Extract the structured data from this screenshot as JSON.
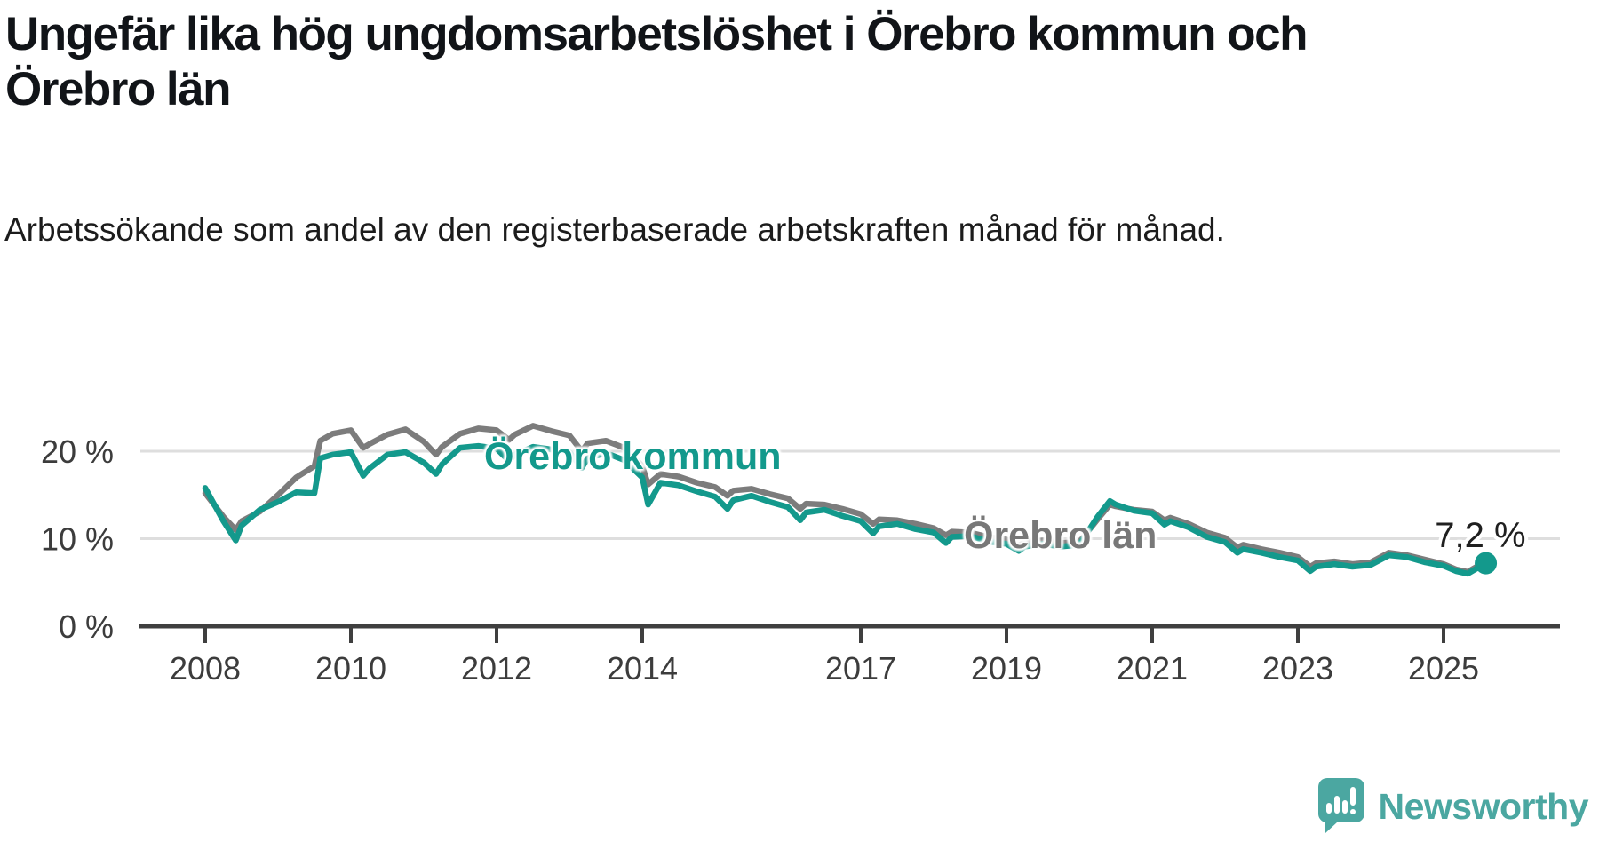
{
  "header": {
    "title": "Ungefär lika hög ungdomsarbetslöshet i Örebro kommun och Örebro län",
    "subtitle": "Arbetssökande som andel av den registerbaserade arbetskraften månad för månad."
  },
  "chart_data": {
    "type": "line",
    "xlabel": "",
    "ylabel": "",
    "x_range": [
      2008.0,
      2025.58
    ],
    "y_range": [
      0,
      24
    ],
    "grid": true,
    "x_ticks": [
      {
        "value": 2008,
        "label": "2008"
      },
      {
        "value": 2010,
        "label": "2010"
      },
      {
        "value": 2012,
        "label": "2012"
      },
      {
        "value": 2014,
        "label": "2014"
      },
      {
        "value": 2017,
        "label": "2017"
      },
      {
        "value": 2019,
        "label": "2019"
      },
      {
        "value": 2021,
        "label": "2021"
      },
      {
        "value": 2023,
        "label": "2023"
      },
      {
        "value": 2025,
        "label": "2025"
      }
    ],
    "y_ticks": [
      {
        "value": 0,
        "label": "0 %",
        "grid": false
      },
      {
        "value": 10,
        "label": "10 %",
        "grid": true
      },
      {
        "value": 20,
        "label": "20 %",
        "grid": true
      }
    ],
    "x": [
      2008.0,
      2008.25,
      2008.42,
      2008.5,
      2008.75,
      2009.0,
      2009.25,
      2009.5,
      2009.58,
      2009.75,
      2010.0,
      2010.17,
      2010.25,
      2010.5,
      2010.75,
      2011.0,
      2011.17,
      2011.25,
      2011.5,
      2011.75,
      2012.0,
      2012.17,
      2012.25,
      2012.5,
      2012.75,
      2013.0,
      2013.17,
      2013.25,
      2013.5,
      2013.75,
      2014.0,
      2014.08,
      2014.25,
      2014.5,
      2014.75,
      2015.0,
      2015.17,
      2015.25,
      2015.5,
      2015.75,
      2016.0,
      2016.17,
      2016.25,
      2016.5,
      2016.75,
      2017.0,
      2017.17,
      2017.25,
      2017.5,
      2017.75,
      2018.0,
      2018.17,
      2018.25,
      2018.5,
      2018.75,
      2019.0,
      2019.17,
      2019.25,
      2019.5,
      2019.75,
      2020.0,
      2020.25,
      2020.42,
      2020.5,
      2020.75,
      2021.0,
      2021.17,
      2021.25,
      2021.5,
      2021.75,
      2022.0,
      2022.17,
      2022.25,
      2022.5,
      2022.75,
      2023.0,
      2023.17,
      2023.25,
      2023.5,
      2023.75,
      2024.0,
      2024.25,
      2024.5,
      2024.75,
      2025.0,
      2025.17,
      2025.33,
      2025.58
    ],
    "series": [
      {
        "name": "Örebro län",
        "label": "Örebro län",
        "color": "#7c7c7c",
        "values": [
          15.2,
          12.5,
          11.0,
          12.0,
          13.1,
          15.0,
          17.0,
          18.3,
          21.2,
          22.0,
          22.4,
          20.4,
          20.8,
          21.9,
          22.5,
          21.1,
          19.6,
          20.5,
          22.0,
          22.6,
          22.4,
          21.3,
          21.9,
          22.9,
          22.3,
          21.8,
          20.0,
          20.9,
          21.2,
          20.4,
          18.3,
          16.2,
          17.4,
          17.1,
          16.4,
          15.9,
          14.9,
          15.5,
          15.7,
          15.1,
          14.6,
          13.4,
          14.0,
          13.9,
          13.4,
          12.8,
          11.7,
          12.2,
          12.1,
          11.7,
          11.2,
          10.4,
          10.8,
          10.7,
          10.2,
          9.9,
          9.2,
          9.6,
          9.8,
          9.5,
          9.6,
          12.2,
          13.9,
          13.7,
          13.3,
          13.1,
          12.1,
          12.4,
          11.7,
          10.7,
          10.1,
          9.0,
          9.3,
          8.8,
          8.4,
          7.9,
          6.8,
          7.2,
          7.4,
          7.1,
          7.3,
          8.4,
          8.1,
          7.6,
          7.1,
          6.5,
          6.2,
          7.4
        ]
      },
      {
        "name": "Örebro kommun",
        "label": "Örebro kommun",
        "color": "#13998c",
        "values": [
          15.8,
          12.0,
          9.8,
          11.5,
          13.3,
          14.2,
          15.3,
          15.2,
          19.2,
          19.6,
          19.9,
          17.2,
          18.0,
          19.6,
          19.9,
          18.7,
          17.4,
          18.5,
          20.4,
          20.6,
          20.3,
          18.9,
          19.6,
          20.5,
          20.2,
          19.9,
          18.1,
          19.2,
          19.8,
          19.0,
          17.0,
          13.9,
          16.4,
          16.1,
          15.4,
          14.8,
          13.4,
          14.4,
          14.9,
          14.2,
          13.6,
          12.1,
          13.0,
          13.3,
          12.6,
          12.0,
          10.6,
          11.4,
          11.7,
          11.1,
          10.7,
          9.5,
          10.2,
          10.3,
          9.7,
          9.4,
          8.6,
          9.1,
          9.4,
          9.1,
          9.3,
          12.5,
          14.3,
          13.9,
          13.2,
          12.9,
          11.6,
          12.0,
          11.3,
          10.2,
          9.6,
          8.4,
          8.8,
          8.4,
          7.9,
          7.5,
          6.3,
          6.8,
          7.1,
          6.8,
          7.0,
          8.1,
          7.9,
          7.3,
          6.9,
          6.3,
          6.0,
          7.2
        ]
      }
    ],
    "end_annotation": {
      "label": "7,2 %",
      "series": "Örebro kommun",
      "value": 7.2
    },
    "legend_position": "inline-labels"
  },
  "footer": {
    "logo_text": "Newsworthy",
    "logo_color": "#4ba7a1"
  },
  "colors": {
    "title": "#111418",
    "axis_line": "#3f3f3f",
    "axis_label": "#3c3c3c",
    "gridline": "#dedede",
    "annotation": "#1f1f1f"
  }
}
